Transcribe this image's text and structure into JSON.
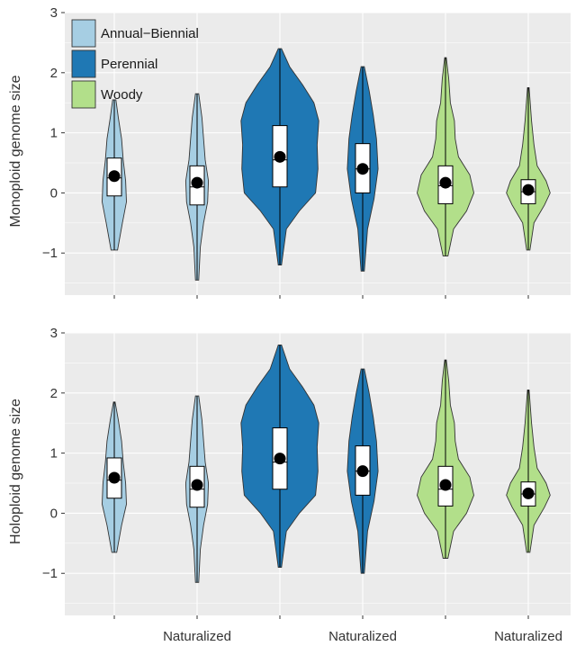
{
  "chart_data": {
    "type": "violin",
    "categories": [
      "",
      "Naturalized",
      "",
      "Naturalized",
      "",
      "Naturalized"
    ],
    "groups": [
      "Annual-Biennial",
      "Annual-Biennial",
      "Perennial",
      "Perennial",
      "Woody",
      "Woody"
    ],
    "legend": {
      "position": "top-left",
      "entries": [
        {
          "label": "Annual−Biennial",
          "color": "#a6cee3"
        },
        {
          "label": "Perennial",
          "color": "#1f78b4"
        },
        {
          "label": "Woody",
          "color": "#b2df8a"
        }
      ]
    },
    "panels": [
      {
        "ylabel": "Monoploid genome size",
        "ylim": [
          -1.7,
          3.0
        ],
        "yticks": [
          -1,
          0,
          1,
          2,
          3
        ],
        "ytick_labels": [
          "−1",
          "0",
          "1",
          "2",
          "3"
        ],
        "violins": [
          {
            "min": -0.95,
            "q1": -0.05,
            "median": 0.25,
            "q3": 0.58,
            "max": 1.55,
            "mean": 0.28,
            "halfwidth": [
              [
                -0.95,
                0.2
              ],
              [
                -0.5,
                0.5
              ],
              [
                -0.15,
                0.75
              ],
              [
                0.2,
                0.7
              ],
              [
                0.55,
                0.55
              ],
              [
                0.9,
                0.45
              ],
              [
                1.25,
                0.25
              ],
              [
                1.55,
                0.1
              ]
            ]
          },
          {
            "min": -1.45,
            "q1": -0.2,
            "median": 0.1,
            "q3": 0.45,
            "max": 1.65,
            "mean": 0.17,
            "halfwidth": [
              [
                -1.45,
                0.1
              ],
              [
                -0.9,
                0.2
              ],
              [
                -0.5,
                0.4
              ],
              [
                -0.15,
                0.65
              ],
              [
                0.2,
                0.7
              ],
              [
                0.55,
                0.5
              ],
              [
                0.9,
                0.4
              ],
              [
                1.25,
                0.3
              ],
              [
                1.65,
                0.1
              ]
            ]
          },
          {
            "min": -1.2,
            "q1": 0.1,
            "median": 0.55,
            "q3": 1.12,
            "max": 2.4,
            "mean": 0.6,
            "halfwidth": [
              [
                -1.2,
                0.1
              ],
              [
                -0.6,
                0.4
              ],
              [
                -0.3,
                1.2
              ],
              [
                0.0,
                2.2
              ],
              [
                0.4,
                2.35
              ],
              [
                0.8,
                2.3
              ],
              [
                1.2,
                2.4
              ],
              [
                1.5,
                2.1
              ],
              [
                1.8,
                1.4
              ],
              [
                2.1,
                0.6
              ],
              [
                2.4,
                0.1
              ]
            ]
          },
          {
            "min": -1.3,
            "q1": 0.0,
            "median": 0.4,
            "q3": 0.82,
            "max": 2.1,
            "mean": 0.4,
            "halfwidth": [
              [
                -1.3,
                0.1
              ],
              [
                -0.6,
                0.3
              ],
              [
                -0.1,
                0.7
              ],
              [
                0.4,
                0.95
              ],
              [
                0.9,
                0.85
              ],
              [
                1.3,
                0.65
              ],
              [
                1.7,
                0.4
              ],
              [
                2.1,
                0.1
              ]
            ]
          },
          {
            "min": -1.05,
            "q1": -0.18,
            "median": 0.12,
            "q3": 0.45,
            "max": 2.25,
            "mean": 0.17,
            "halfwidth": [
              [
                -1.05,
                0.15
              ],
              [
                -0.6,
                0.5
              ],
              [
                -0.3,
                1.3
              ],
              [
                0.0,
                1.75
              ],
              [
                0.3,
                1.5
              ],
              [
                0.6,
                0.8
              ],
              [
                0.9,
                0.6
              ],
              [
                1.2,
                0.55
              ],
              [
                1.5,
                0.3
              ],
              [
                1.9,
                0.2
              ],
              [
                2.25,
                0.05
              ]
            ]
          },
          {
            "min": -0.95,
            "q1": -0.18,
            "median": 0.02,
            "q3": 0.22,
            "max": 1.75,
            "mean": 0.05,
            "halfwidth": [
              [
                -0.95,
                0.1
              ],
              [
                -0.5,
                0.35
              ],
              [
                -0.2,
                1.0
              ],
              [
                0.0,
                1.35
              ],
              [
                0.2,
                1.1
              ],
              [
                0.45,
                0.55
              ],
              [
                0.8,
                0.35
              ],
              [
                1.2,
                0.2
              ],
              [
                1.75,
                0.05
              ]
            ]
          }
        ]
      },
      {
        "ylabel": "Holoploid genome size",
        "ylim": [
          -1.7,
          3.0
        ],
        "yticks": [
          -1,
          0,
          1,
          2,
          3
        ],
        "ytick_labels": [
          "−1",
          "0",
          "1",
          "2",
          "3"
        ],
        "violins": [
          {
            "min": -0.65,
            "q1": 0.25,
            "median": 0.55,
            "q3": 0.92,
            "max": 1.85,
            "mean": 0.59,
            "halfwidth": [
              [
                -0.65,
                0.15
              ],
              [
                -0.2,
                0.45
              ],
              [
                0.15,
                0.75
              ],
              [
                0.5,
                0.7
              ],
              [
                0.85,
                0.55
              ],
              [
                1.2,
                0.45
              ],
              [
                1.55,
                0.25
              ],
              [
                1.85,
                0.05
              ]
            ]
          },
          {
            "min": -1.15,
            "q1": 0.1,
            "median": 0.4,
            "q3": 0.78,
            "max": 1.95,
            "mean": 0.47,
            "halfwidth": [
              [
                -1.15,
                0.1
              ],
              [
                -0.6,
                0.2
              ],
              [
                -0.2,
                0.4
              ],
              [
                0.15,
                0.65
              ],
              [
                0.5,
                0.7
              ],
              [
                0.85,
                0.5
              ],
              [
                1.2,
                0.4
              ],
              [
                1.55,
                0.3
              ],
              [
                1.95,
                0.1
              ]
            ]
          },
          {
            "min": -0.9,
            "q1": 0.4,
            "median": 0.85,
            "q3": 1.42,
            "max": 2.8,
            "mean": 0.91,
            "halfwidth": [
              [
                -0.9,
                0.1
              ],
              [
                -0.3,
                0.4
              ],
              [
                0.0,
                1.2
              ],
              [
                0.3,
                2.2
              ],
              [
                0.7,
                2.35
              ],
              [
                1.1,
                2.3
              ],
              [
                1.5,
                2.4
              ],
              [
                1.8,
                2.1
              ],
              [
                2.1,
                1.4
              ],
              [
                2.4,
                0.6
              ],
              [
                2.8,
                0.1
              ]
            ]
          },
          {
            "min": -1.0,
            "q1": 0.3,
            "median": 0.7,
            "q3": 1.12,
            "max": 2.4,
            "mean": 0.7,
            "halfwidth": [
              [
                -1.0,
                0.1
              ],
              [
                -0.3,
                0.3
              ],
              [
                0.2,
                0.7
              ],
              [
                0.7,
                0.95
              ],
              [
                1.2,
                0.85
              ],
              [
                1.6,
                0.65
              ],
              [
                2.0,
                0.4
              ],
              [
                2.4,
                0.1
              ]
            ]
          },
          {
            "min": -0.75,
            "q1": 0.12,
            "median": 0.4,
            "q3": 0.78,
            "max": 2.55,
            "mean": 0.47,
            "halfwidth": [
              [
                -0.75,
                0.15
              ],
              [
                -0.3,
                0.5
              ],
              [
                0.0,
                1.3
              ],
              [
                0.3,
                1.75
              ],
              [
                0.6,
                1.5
              ],
              [
                0.9,
                0.8
              ],
              [
                1.2,
                0.6
              ],
              [
                1.5,
                0.55
              ],
              [
                1.8,
                0.3
              ],
              [
                2.2,
                0.2
              ],
              [
                2.55,
                0.05
              ]
            ]
          },
          {
            "min": -0.65,
            "q1": 0.12,
            "median": 0.32,
            "q3": 0.52,
            "max": 2.05,
            "mean": 0.33,
            "halfwidth": [
              [
                -0.65,
                0.1
              ],
              [
                -0.2,
                0.35
              ],
              [
                0.1,
                1.0
              ],
              [
                0.3,
                1.35
              ],
              [
                0.5,
                1.1
              ],
              [
                0.75,
                0.55
              ],
              [
                1.1,
                0.35
              ],
              [
                1.5,
                0.2
              ],
              [
                2.05,
                0.05
              ]
            ]
          }
        ]
      }
    ]
  }
}
